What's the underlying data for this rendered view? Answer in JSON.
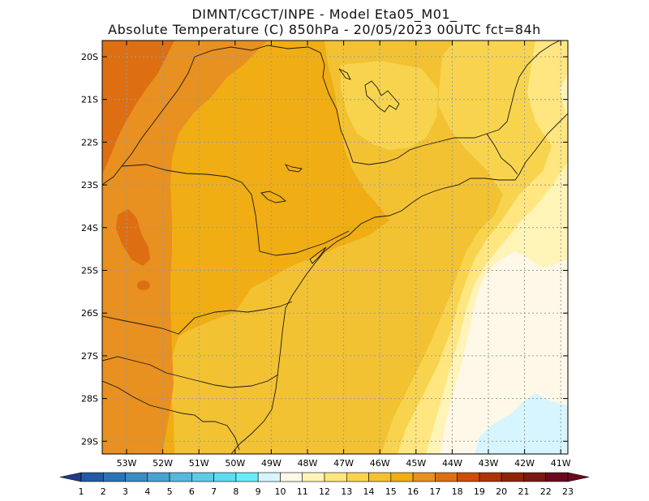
{
  "header": {
    "line1": "DIMNT/CGCT/INPE -  Model Eta05_M01_",
    "line2": "Absolute Temperature (C) 850hPa -  20/05/2023 00UTC fct=84h"
  },
  "map": {
    "lat_labels": [
      "20S",
      "21S",
      "22S",
      "23S",
      "24S",
      "25S",
      "26S",
      "27S",
      "28S",
      "29S"
    ],
    "lon_labels": [
      "53W",
      "52W",
      "51W",
      "50W",
      "49W",
      "48W",
      "47W",
      "46W",
      "45W",
      "44W",
      "43W",
      "42W",
      "41W"
    ],
    "grid": true
  },
  "colorbar": {
    "labels": [
      "1",
      "2",
      "3",
      "4",
      "5",
      "6",
      "7",
      "8",
      "9",
      "10",
      "11",
      "12",
      "13",
      "14",
      "15",
      "16",
      "17",
      "18",
      "19",
      "20",
      "21",
      "22",
      "23"
    ],
    "colors": [
      "#1f3c8c",
      "#245aa3",
      "#2b73b6",
      "#3a8cc2",
      "#4aa3cf",
      "#57b8db",
      "#5ccbe6",
      "#5fdcef",
      "#66eefa",
      "#d6f5ff",
      "#fff8e8",
      "#fff4b8",
      "#ffe680",
      "#f8d44e",
      "#f2c233",
      "#f0ad14",
      "#e89020",
      "#dd6f12",
      "#cc4e08",
      "#ac3408",
      "#8f2409",
      "#7a1a10",
      "#6a0a1c"
    ]
  },
  "field_colors": {
    "t12": "#fff8e8",
    "t11": "#d6f5ff",
    "t13": "#fff4b8",
    "t14": "#ffe680",
    "t15": "#f8d44e",
    "t16": "#f2c233",
    "t17": "#f0ad14",
    "t18": "#e89020",
    "t19": "#dd6f12"
  }
}
